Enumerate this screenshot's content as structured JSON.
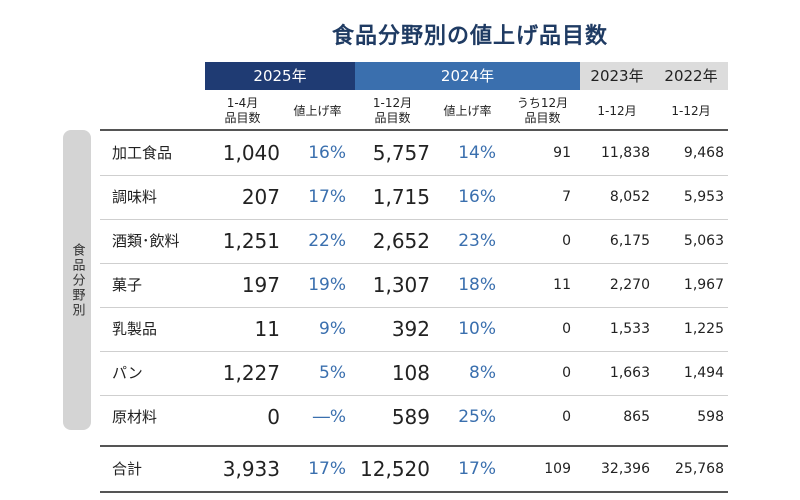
{
  "title": "食品分野別の値上げ品目数",
  "side_label": "食品分野別",
  "year_headers": [
    "2025年",
    "2024年",
    "2023年",
    "2022年"
  ],
  "sub_headers": [
    "1-4月\n品目数",
    "値上げ率",
    "1-12月\n品目数",
    "値上げ率",
    "うち12月\n品目数",
    "1-12月",
    "1-12月"
  ],
  "rows": [
    {
      "category": "加工食品",
      "v2025": "1,040",
      "r2025": "16%",
      "v2024": "5,757",
      "r2024": "14%",
      "dec2024": "91",
      "v2023": "11,838",
      "v2022": "9,468"
    },
    {
      "category": "調味料",
      "v2025": "207",
      "r2025": "17%",
      "v2024": "1,715",
      "r2024": "16%",
      "dec2024": "7",
      "v2023": "8,052",
      "v2022": "5,953"
    },
    {
      "category": "酒類･飲料",
      "v2025": "1,251",
      "r2025": "22%",
      "v2024": "2,652",
      "r2024": "23%",
      "dec2024": "0",
      "v2023": "6,175",
      "v2022": "5,063"
    },
    {
      "category": "菓子",
      "v2025": "197",
      "r2025": "19%",
      "v2024": "1,307",
      "r2024": "18%",
      "dec2024": "11",
      "v2023": "2,270",
      "v2022": "1,967"
    },
    {
      "category": "乳製品",
      "v2025": "11",
      "r2025": "9%",
      "v2024": "392",
      "r2024": "10%",
      "dec2024": "0",
      "v2023": "1,533",
      "v2022": "1,225"
    },
    {
      "category": "パン",
      "v2025": "1,227",
      "r2025": "5%",
      "v2024": "108",
      "r2024": "8%",
      "dec2024": "0",
      "v2023": "1,663",
      "v2022": "1,494"
    },
    {
      "category": "原材料",
      "v2025": "0",
      "r2025": "―%",
      "v2024": "589",
      "r2024": "25%",
      "dec2024": "0",
      "v2023": "865",
      "v2022": "598"
    }
  ],
  "total": {
    "category": "合計",
    "v2025": "3,933",
    "r2025": "17%",
    "v2024": "12,520",
    "r2024": "17%",
    "dec2024": "109",
    "v2023": "32,396",
    "v2022": "25,768"
  }
}
